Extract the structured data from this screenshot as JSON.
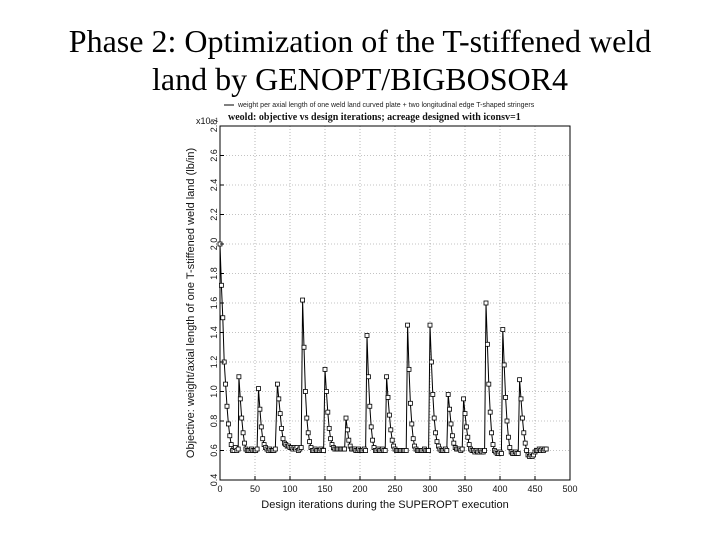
{
  "slide": {
    "title_line1": "Phase 2: Optimization of the T-stiffened weld",
    "title_line2": "land by GENOPT/BIGBOSOR4"
  },
  "chart_data": {
    "type": "line",
    "title": "weold: objective vs design iterations; acreage designed with iconsv=1",
    "legend": "weight per axial length of one weld land curved plate + two longitudinal edge T-shaped stringers",
    "legend_placement": "top-left",
    "xlabel": "Design iterations during the SUPEROPT execution",
    "ylabel": "Objective: weight/axial length of one T-stiffened weld land (lb/in)",
    "y_exponent": "x10⁻¹",
    "xlim": [
      0,
      500
    ],
    "ylim": [
      0.4,
      2.8
    ],
    "x_ticks": [
      "0",
      "50",
      "100",
      "150",
      "200",
      "250",
      "300",
      "350",
      "400",
      "450",
      "500"
    ],
    "y_ticks": [
      "0.4",
      "0.6",
      "0.8",
      "1.0",
      "1.2",
      "1.4",
      "1.6",
      "1.8",
      "2.0",
      "2.2",
      "2.4",
      "2.6",
      "2.8"
    ],
    "grid": true,
    "marker": "square",
    "series": [
      {
        "name": "",
        "points": [
          [
            0,
            2.0
          ],
          [
            2,
            1.72
          ],
          [
            4,
            1.5
          ],
          [
            6,
            1.2
          ],
          [
            8,
            1.05
          ],
          [
            10,
            0.9
          ],
          [
            12,
            0.78
          ],
          [
            14,
            0.7
          ],
          [
            16,
            0.64
          ],
          [
            18,
            0.6
          ],
          [
            20,
            0.6
          ],
          [
            22,
            0.62
          ],
          [
            24,
            0.6
          ],
          [
            26,
            0.61
          ],
          [
            27,
            1.1
          ],
          [
            29,
            0.95
          ],
          [
            31,
            0.82
          ],
          [
            33,
            0.72
          ],
          [
            35,
            0.65
          ],
          [
            37,
            0.61
          ],
          [
            39,
            0.6
          ],
          [
            41,
            0.6
          ],
          [
            43,
            0.6
          ],
          [
            45,
            0.61
          ],
          [
            47,
            0.6
          ],
          [
            49,
            0.6
          ],
          [
            51,
            0.6
          ],
          [
            53,
            0.61
          ],
          [
            55,
            1.02
          ],
          [
            57,
            0.88
          ],
          [
            59,
            0.76
          ],
          [
            61,
            0.68
          ],
          [
            63,
            0.64
          ],
          [
            65,
            0.62
          ],
          [
            67,
            0.61
          ],
          [
            69,
            0.6
          ],
          [
            71,
            0.61
          ],
          [
            73,
            0.6
          ],
          [
            75,
            0.6
          ],
          [
            77,
            0.6
          ],
          [
            79,
            0.61
          ],
          [
            82,
            1.05
          ],
          [
            84,
            0.95
          ],
          [
            86,
            0.85
          ],
          [
            88,
            0.75
          ],
          [
            90,
            0.68
          ],
          [
            92,
            0.65
          ],
          [
            94,
            0.64
          ],
          [
            96,
            0.63
          ],
          [
            98,
            0.63
          ],
          [
            100,
            0.62
          ],
          [
            102,
            0.62
          ],
          [
            104,
            0.61
          ],
          [
            106,
            0.62
          ],
          [
            108,
            0.61
          ],
          [
            110,
            0.62
          ],
          [
            112,
            0.6
          ],
          [
            114,
            0.61
          ],
          [
            116,
            0.62
          ],
          [
            118,
            1.62
          ],
          [
            120,
            1.3
          ],
          [
            122,
            1.0
          ],
          [
            124,
            0.82
          ],
          [
            126,
            0.72
          ],
          [
            128,
            0.66
          ],
          [
            130,
            0.62
          ],
          [
            132,
            0.6
          ],
          [
            134,
            0.6
          ],
          [
            136,
            0.61
          ],
          [
            138,
            0.6
          ],
          [
            140,
            0.6
          ],
          [
            142,
            0.6
          ],
          [
            144,
            0.61
          ],
          [
            146,
            0.6
          ],
          [
            148,
            0.6
          ],
          [
            150,
            1.15
          ],
          [
            152,
            1.0
          ],
          [
            154,
            0.86
          ],
          [
            156,
            0.75
          ],
          [
            158,
            0.68
          ],
          [
            160,
            0.64
          ],
          [
            162,
            0.62
          ],
          [
            164,
            0.61
          ],
          [
            166,
            0.61
          ],
          [
            168,
            0.61
          ],
          [
            170,
            0.61
          ],
          [
            172,
            0.61
          ],
          [
            174,
            0.61
          ],
          [
            176,
            0.61
          ],
          [
            178,
            0.61
          ],
          [
            180,
            0.82
          ],
          [
            182,
            0.74
          ],
          [
            184,
            0.67
          ],
          [
            186,
            0.63
          ],
          [
            188,
            0.61
          ],
          [
            190,
            0.61
          ],
          [
            192,
            0.61
          ],
          [
            194,
            0.6
          ],
          [
            196,
            0.6
          ],
          [
            198,
            0.61
          ],
          [
            200,
            0.6
          ],
          [
            202,
            0.6
          ],
          [
            204,
            0.6
          ],
          [
            206,
            0.61
          ],
          [
            208,
            0.6
          ],
          [
            210,
            1.38
          ],
          [
            212,
            1.1
          ],
          [
            214,
            0.9
          ],
          [
            216,
            0.76
          ],
          [
            218,
            0.67
          ],
          [
            220,
            0.62
          ],
          [
            222,
            0.6
          ],
          [
            224,
            0.6
          ],
          [
            226,
            0.61
          ],
          [
            228,
            0.6
          ],
          [
            230,
            0.6
          ],
          [
            232,
            0.61
          ],
          [
            234,
            0.6
          ],
          [
            236,
            0.6
          ],
          [
            238,
            1.1
          ],
          [
            240,
            0.96
          ],
          [
            242,
            0.84
          ],
          [
            244,
            0.74
          ],
          [
            246,
            0.67
          ],
          [
            248,
            0.63
          ],
          [
            250,
            0.61
          ],
          [
            252,
            0.6
          ],
          [
            254,
            0.6
          ],
          [
            256,
            0.6
          ],
          [
            258,
            0.6
          ],
          [
            260,
            0.6
          ],
          [
            262,
            0.6
          ],
          [
            264,
            0.6
          ],
          [
            266,
            0.6
          ],
          [
            268,
            1.45
          ],
          [
            270,
            1.15
          ],
          [
            272,
            0.92
          ],
          [
            274,
            0.78
          ],
          [
            276,
            0.68
          ],
          [
            278,
            0.63
          ],
          [
            280,
            0.61
          ],
          [
            282,
            0.6
          ],
          [
            284,
            0.6
          ],
          [
            286,
            0.6
          ],
          [
            288,
            0.6
          ],
          [
            290,
            0.6
          ],
          [
            292,
            0.61
          ],
          [
            294,
            0.6
          ],
          [
            296,
            0.6
          ],
          [
            298,
            0.6
          ],
          [
            300,
            1.45
          ],
          [
            302,
            1.2
          ],
          [
            304,
            0.98
          ],
          [
            306,
            0.82
          ],
          [
            308,
            0.72
          ],
          [
            310,
            0.66
          ],
          [
            312,
            0.63
          ],
          [
            314,
            0.61
          ],
          [
            316,
            0.6
          ],
          [
            318,
            0.6
          ],
          [
            320,
            0.6
          ],
          [
            322,
            0.61
          ],
          [
            324,
            0.6
          ],
          [
            326,
            0.98
          ],
          [
            328,
            0.88
          ],
          [
            330,
            0.78
          ],
          [
            332,
            0.7
          ],
          [
            334,
            0.65
          ],
          [
            336,
            0.62
          ],
          [
            338,
            0.61
          ],
          [
            340,
            0.61
          ],
          [
            342,
            0.61
          ],
          [
            344,
            0.6
          ],
          [
            346,
            0.61
          ],
          [
            348,
            0.95
          ],
          [
            350,
            0.85
          ],
          [
            352,
            0.76
          ],
          [
            354,
            0.69
          ],
          [
            356,
            0.64
          ],
          [
            358,
            0.61
          ],
          [
            360,
            0.6
          ],
          [
            362,
            0.6
          ],
          [
            364,
            0.59
          ],
          [
            366,
            0.6
          ],
          [
            368,
            0.59
          ],
          [
            370,
            0.59
          ],
          [
            372,
            0.6
          ],
          [
            374,
            0.59
          ],
          [
            376,
            0.59
          ],
          [
            378,
            0.6
          ],
          [
            380,
            1.6
          ],
          [
            382,
            1.32
          ],
          [
            384,
            1.05
          ],
          [
            386,
            0.86
          ],
          [
            388,
            0.72
          ],
          [
            390,
            0.64
          ],
          [
            392,
            0.6
          ],
          [
            394,
            0.59
          ],
          [
            396,
            0.58
          ],
          [
            398,
            0.58
          ],
          [
            400,
            0.59
          ],
          [
            402,
            0.58
          ],
          [
            404,
            1.42
          ],
          [
            406,
            1.18
          ],
          [
            408,
            0.96
          ],
          [
            410,
            0.8
          ],
          [
            412,
            0.69
          ],
          [
            414,
            0.62
          ],
          [
            416,
            0.59
          ],
          [
            418,
            0.58
          ],
          [
            420,
            0.58
          ],
          [
            422,
            0.59
          ],
          [
            424,
            0.58
          ],
          [
            426,
            0.58
          ],
          [
            428,
            1.08
          ],
          [
            430,
            0.95
          ],
          [
            432,
            0.82
          ],
          [
            434,
            0.72
          ],
          [
            436,
            0.65
          ],
          [
            438,
            0.6
          ],
          [
            440,
            0.57
          ],
          [
            442,
            0.56
          ],
          [
            444,
            0.57
          ],
          [
            446,
            0.56
          ],
          [
            448,
            0.57
          ],
          [
            450,
            0.59
          ],
          [
            452,
            0.6
          ],
          [
            454,
            0.6
          ],
          [
            456,
            0.61
          ],
          [
            458,
            0.6
          ],
          [
            460,
            0.61
          ],
          [
            462,
            0.6
          ],
          [
            464,
            0.61
          ],
          [
            466,
            0.61
          ]
        ]
      }
    ]
  }
}
